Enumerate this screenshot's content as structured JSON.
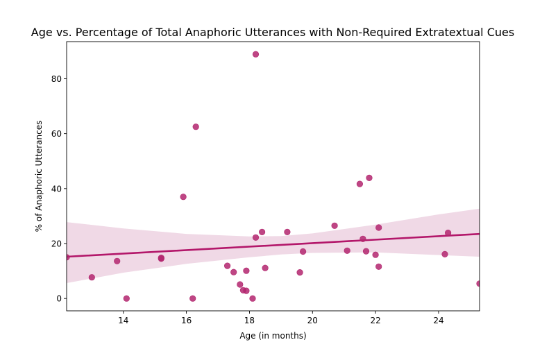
{
  "chart_data": {
    "type": "scatter",
    "title": "Age vs. Percentage of Total Anaphoric Utterances with Non-Required Extratextual Cues",
    "xlabel": "Age (in months)",
    "ylabel": "% of Anaphoric Utterances",
    "xlim": [
      12.2,
      25.3
    ],
    "ylim": [
      -4.5,
      93.5
    ],
    "xticks": [
      "14",
      "16",
      "18",
      "20",
      "22",
      "24"
    ],
    "yticks": [
      "0",
      "20",
      "40",
      "60",
      "80"
    ],
    "grid": false,
    "point_color": "#b3266e",
    "line_color": "#b3176a",
    "band_color": "#f0d9e6",
    "points": [
      {
        "x": 12.2,
        "y": 15.0
      },
      {
        "x": 13.0,
        "y": 7.7
      },
      {
        "x": 13.8,
        "y": 13.6
      },
      {
        "x": 14.1,
        "y": 0.0
      },
      {
        "x": 15.2,
        "y": 14.5
      },
      {
        "x": 15.2,
        "y": 14.8
      },
      {
        "x": 15.9,
        "y": 37.0
      },
      {
        "x": 16.2,
        "y": 0.0
      },
      {
        "x": 16.3,
        "y": 62.5
      },
      {
        "x": 17.3,
        "y": 11.9
      },
      {
        "x": 17.5,
        "y": 9.6
      },
      {
        "x": 17.7,
        "y": 5.1
      },
      {
        "x": 17.8,
        "y": 3.0
      },
      {
        "x": 17.9,
        "y": 2.8
      },
      {
        "x": 17.9,
        "y": 10.1
      },
      {
        "x": 18.1,
        "y": 0.0
      },
      {
        "x": 18.2,
        "y": 88.9
      },
      {
        "x": 18.2,
        "y": 22.2
      },
      {
        "x": 18.4,
        "y": 24.2
      },
      {
        "x": 18.5,
        "y": 11.1
      },
      {
        "x": 19.2,
        "y": 24.2
      },
      {
        "x": 19.6,
        "y": 9.5
      },
      {
        "x": 19.7,
        "y": 17.1
      },
      {
        "x": 20.7,
        "y": 26.5
      },
      {
        "x": 21.1,
        "y": 17.4
      },
      {
        "x": 21.5,
        "y": 41.7
      },
      {
        "x": 21.6,
        "y": 21.7
      },
      {
        "x": 21.7,
        "y": 17.2
      },
      {
        "x": 21.8,
        "y": 43.9
      },
      {
        "x": 22.0,
        "y": 15.9
      },
      {
        "x": 22.1,
        "y": 25.8
      },
      {
        "x": 22.1,
        "y": 11.6
      },
      {
        "x": 24.2,
        "y": 16.1
      },
      {
        "x": 24.3,
        "y": 23.9
      },
      {
        "x": 25.3,
        "y": 5.4
      }
    ],
    "regression": {
      "x": [
        12.2,
        25.3
      ],
      "y": [
        15.2,
        23.5
      ]
    },
    "confidence_band": {
      "x": [
        12.2,
        14.0,
        16.0,
        18.0,
        19.0,
        20.0,
        22.0,
        24.0,
        25.3
      ],
      "lower": [
        5.6,
        9.4,
        12.6,
        15.0,
        16.0,
        16.6,
        16.8,
        15.8,
        15.2
      ],
      "upper": [
        27.8,
        25.5,
        23.5,
        22.6,
        22.7,
        23.7,
        26.9,
        30.6,
        32.7
      ]
    }
  }
}
